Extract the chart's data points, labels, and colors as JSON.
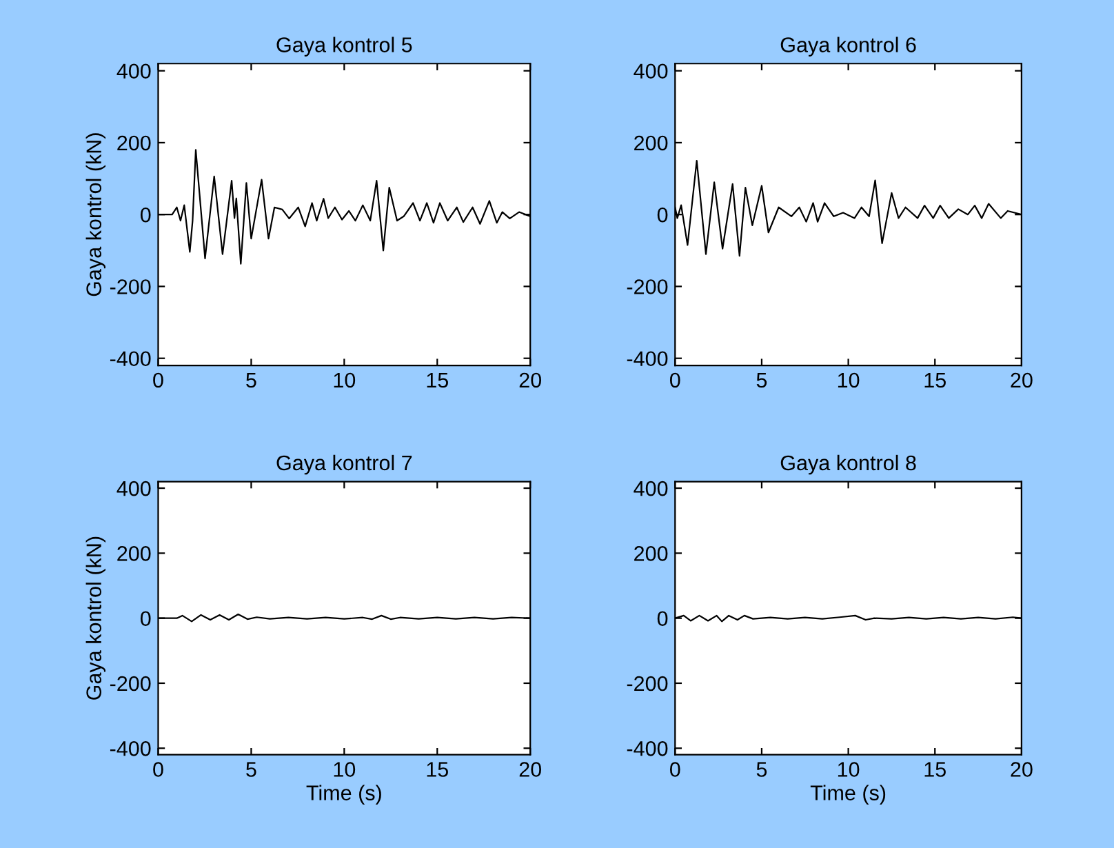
{
  "chart_data": [
    {
      "type": "line",
      "title": "Gaya kontrol 5",
      "ylabel": "Gaya kontrol (kN)",
      "xlim": [
        0,
        20
      ],
      "ylim": [
        -420,
        420
      ],
      "xticks": [
        0,
        5,
        10,
        15,
        20
      ],
      "yticks": [
        -400,
        -200,
        0,
        200,
        400
      ],
      "grid": false,
      "legend": false,
      "series": [
        {
          "color": "#000000",
          "x": [
            0,
            0.75,
            1.0,
            1.2,
            1.4,
            1.7,
            1.85,
            2.02,
            2.52,
            3.01,
            3.46,
            3.95,
            4.1,
            4.2,
            4.44,
            4.74,
            5.0,
            5.56,
            5.93,
            6.25,
            6.67,
            7.04,
            7.53,
            7.9,
            8.27,
            8.52,
            8.89,
            9.14,
            9.5,
            9.88,
            10.25,
            10.6,
            11.0,
            11.4,
            11.74,
            12.1,
            12.42,
            12.84,
            13.2,
            13.7,
            14.07,
            14.44,
            14.8,
            15.14,
            15.56,
            16.05,
            16.4,
            16.9,
            17.3,
            17.8,
            18.2,
            18.5,
            18.9,
            19.4,
            20
          ],
          "values": [
            0,
            0,
            20,
            -17,
            26,
            -104,
            -17,
            180,
            -122,
            106,
            -110,
            94,
            -10,
            45,
            -137,
            88,
            -67,
            97,
            -67,
            20,
            14,
            -11,
            20,
            -33,
            32,
            -17,
            44,
            -10,
            20,
            -14,
            10,
            -17,
            26,
            -17,
            94,
            -100,
            75,
            -17,
            -5,
            32,
            -17,
            32,
            -23,
            32,
            -17,
            20,
            -21,
            20,
            -26,
            38,
            -23,
            7,
            -11,
            7,
            -5
          ]
        }
      ]
    },
    {
      "type": "line",
      "title": "Gaya kontrol 6",
      "xlim": [
        0,
        20
      ],
      "ylim": [
        -420,
        420
      ],
      "xticks": [
        0,
        5,
        10,
        15,
        20
      ],
      "yticks": [
        -400,
        -200,
        0,
        200,
        400
      ],
      "grid": false,
      "legend": false,
      "series": [
        {
          "color": "#000000",
          "x": [
            0,
            0.13,
            0.35,
            0.72,
            1.25,
            1.78,
            2.26,
            2.74,
            3.32,
            3.72,
            4.06,
            4.46,
            5.0,
            5.39,
            5.98,
            6.72,
            7.17,
            7.57,
            7.97,
            8.23,
            8.63,
            9.16,
            9.7,
            10.36,
            10.76,
            11.2,
            11.55,
            11.95,
            12.5,
            12.9,
            13.3,
            14.0,
            14.4,
            14.9,
            15.3,
            15.8,
            16.35,
            16.9,
            17.3,
            17.7,
            18.1,
            18.8,
            19.2,
            20
          ],
          "values": [
            20,
            -10,
            26,
            -85,
            150,
            -110,
            90,
            -95,
            85,
            -115,
            75,
            -30,
            80,
            -50,
            20,
            -5,
            20,
            -20,
            32,
            -20,
            32,
            -5,
            5,
            -10,
            20,
            -5,
            95,
            -80,
            60,
            -10,
            20,
            -10,
            25,
            -10,
            25,
            -10,
            15,
            0,
            25,
            -10,
            30,
            -10,
            10,
            0
          ]
        }
      ]
    },
    {
      "type": "line",
      "title": "Gaya kontrol 7",
      "ylabel": "Gaya kontrol (kN)",
      "xlabel": "Time (s)",
      "xlim": [
        0,
        20
      ],
      "ylim": [
        -420,
        420
      ],
      "xticks": [
        0,
        5,
        10,
        15,
        20
      ],
      "yticks": [
        -400,
        -200,
        0,
        200,
        400
      ],
      "grid": false,
      "legend": false,
      "series": [
        {
          "color": "#000000",
          "x": [
            0,
            1,
            1.3,
            1.8,
            2.3,
            2.8,
            3.3,
            3.8,
            4.3,
            4.8,
            5.3,
            6,
            7,
            8,
            9,
            10,
            11,
            11.5,
            12,
            12.5,
            13,
            14,
            15,
            16,
            17,
            18,
            19,
            20
          ],
          "values": [
            0,
            0,
            8,
            -10,
            10,
            -5,
            10,
            -5,
            12,
            -3,
            3,
            -2,
            2,
            -2,
            2,
            -2,
            2,
            -3,
            8,
            -3,
            2,
            -2,
            2,
            -2,
            2,
            -2,
            2,
            0
          ]
        }
      ]
    },
    {
      "type": "line",
      "title": "Gaya kontrol 8",
      "xlabel": "Time (s)",
      "xlim": [
        0,
        20
      ],
      "ylim": [
        -420,
        420
      ],
      "xticks": [
        0,
        5,
        10,
        15,
        20
      ],
      "yticks": [
        -400,
        -200,
        0,
        200,
        400
      ],
      "grid": false,
      "legend": false,
      "series": [
        {
          "color": "#000000",
          "x": [
            0,
            0.5,
            0.9,
            1.4,
            1.9,
            2.4,
            2.7,
            3.1,
            3.6,
            4.0,
            4.5,
            5.5,
            6.5,
            7.5,
            8.5,
            9.5,
            10.4,
            11.0,
            11.5,
            12.5,
            13.5,
            14.5,
            15.5,
            16.5,
            17.5,
            18.5,
            19.5,
            20
          ],
          "values": [
            0,
            8,
            -8,
            8,
            -8,
            8,
            -10,
            8,
            -5,
            8,
            -2,
            2,
            -2,
            2,
            -2,
            3,
            8,
            -5,
            0,
            -2,
            2,
            -2,
            2,
            -2,
            2,
            -2,
            3,
            0
          ]
        }
      ]
    }
  ]
}
